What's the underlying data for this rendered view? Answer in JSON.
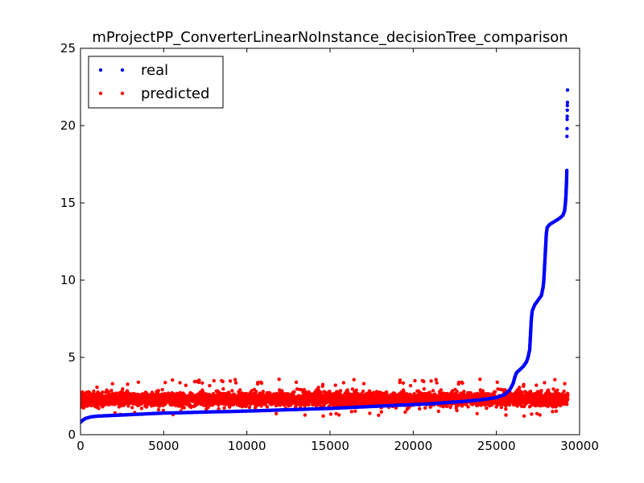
{
  "chart_data": {
    "type": "scatter",
    "title": "mProjectPP_ConverterLinearNoInstance_decisionTree_comparison",
    "xlabel": "",
    "ylabel": "",
    "xlim": [
      0,
      30000
    ],
    "ylim": [
      0,
      25
    ],
    "x_ticks": [
      "0",
      "5000",
      "10000",
      "15000",
      "20000",
      "25000",
      "30000"
    ],
    "y_ticks": [
      "0",
      "5",
      "10",
      "15",
      "20",
      "25"
    ],
    "grid": false,
    "legend_position": "top-left",
    "series": [
      {
        "name": "real",
        "color": "#0000ff",
        "points": [
          [
            0,
            0.8
          ],
          [
            150,
            0.95
          ],
          [
            300,
            1.05
          ],
          [
            600,
            1.15
          ],
          [
            1000,
            1.2
          ],
          [
            2000,
            1.25
          ],
          [
            3000,
            1.3
          ],
          [
            4000,
            1.35
          ],
          [
            5000,
            1.4
          ],
          [
            6000,
            1.42
          ],
          [
            7000,
            1.45
          ],
          [
            8000,
            1.48
          ],
          [
            9000,
            1.5
          ],
          [
            10000,
            1.53
          ],
          [
            11000,
            1.56
          ],
          [
            12000,
            1.6
          ],
          [
            13000,
            1.63
          ],
          [
            14000,
            1.67
          ],
          [
            15000,
            1.7
          ],
          [
            16000,
            1.75
          ],
          [
            17000,
            1.8
          ],
          [
            18000,
            1.85
          ],
          [
            19000,
            1.9
          ],
          [
            20000,
            1.95
          ],
          [
            21000,
            2.0
          ],
          [
            22000,
            2.08
          ],
          [
            23000,
            2.15
          ],
          [
            24000,
            2.25
          ],
          [
            25000,
            2.4
          ],
          [
            25500,
            2.6
          ],
          [
            25800,
            2.9
          ],
          [
            26000,
            3.3
          ],
          [
            26100,
            3.7
          ],
          [
            26200,
            4.0
          ],
          [
            26400,
            4.2
          ],
          [
            26600,
            4.4
          ],
          [
            26800,
            4.7
          ],
          [
            26900,
            5.0
          ],
          [
            27000,
            5.5
          ],
          [
            27050,
            6.5
          ],
          [
            27100,
            7.5
          ],
          [
            27150,
            8.0
          ],
          [
            27300,
            8.4
          ],
          [
            27500,
            8.7
          ],
          [
            27700,
            9.0
          ],
          [
            27800,
            9.5
          ],
          [
            27850,
            10.0
          ],
          [
            27900,
            11.0
          ],
          [
            27950,
            12.0
          ],
          [
            28000,
            13.0
          ],
          [
            28050,
            13.4
          ],
          [
            28200,
            13.6
          ],
          [
            28500,
            13.8
          ],
          [
            28800,
            14.0
          ],
          [
            29000,
            14.2
          ],
          [
            29100,
            14.5
          ],
          [
            29150,
            15.0
          ],
          [
            29180,
            15.5
          ],
          [
            29200,
            16.0
          ],
          [
            29220,
            16.5
          ],
          [
            29230,
            17.1
          ],
          [
            29240,
            19.3
          ],
          [
            29245,
            19.8
          ],
          [
            29250,
            20.4
          ],
          [
            29255,
            20.6
          ],
          [
            29260,
            21.0
          ],
          [
            29265,
            21.3
          ],
          [
            29270,
            21.5
          ],
          [
            29275,
            22.3
          ]
        ]
      },
      {
        "name": "predicted",
        "color": "#ff0000",
        "x_range": [
          0,
          29300
        ],
        "y_band": [
          1.2,
          3.6
        ],
        "y_center": 2.3
      }
    ]
  }
}
